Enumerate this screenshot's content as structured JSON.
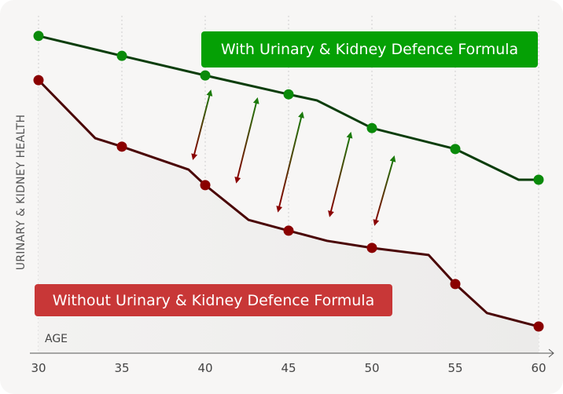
{
  "chart_data": {
    "type": "line",
    "xlabel": "AGE",
    "ylabel": "URINARY & KIDNEY HEALTH",
    "x_ticks": [
      30,
      35,
      40,
      45,
      50,
      55,
      60
    ],
    "xlim": [
      30,
      60
    ],
    "ylim": [
      0,
      100
    ],
    "grid": "vertical dotted",
    "series": [
      {
        "name": "With Urinary & Kidney Defence Formula",
        "color": "#0a8a0a",
        "line_color": "#0b3d0b",
        "points": [
          [
            30,
            94
          ],
          [
            35,
            88.1
          ],
          [
            40,
            82.3
          ],
          [
            45,
            76.7
          ],
          [
            46.7,
            74.9
          ],
          [
            50,
            66.7
          ],
          [
            55,
            60.5
          ],
          [
            58.8,
            51.4
          ],
          [
            60,
            51.4
          ]
        ],
        "markers_at": [
          30,
          35,
          40,
          45,
          50,
          55,
          60
        ]
      },
      {
        "name": "Without Urinary & Kidney Defence Formula",
        "color": "#8a0000",
        "line_color": "#4a0505",
        "points": [
          [
            30,
            80.9
          ],
          [
            33.4,
            63.7
          ],
          [
            35,
            61.2
          ],
          [
            39,
            54.4
          ],
          [
            40,
            49.8
          ],
          [
            42.6,
            39.5
          ],
          [
            45,
            36.3
          ],
          [
            47.3,
            33.3
          ],
          [
            50,
            31.2
          ],
          [
            53.4,
            29.1
          ],
          [
            55,
            20.5
          ],
          [
            56.9,
            11.9
          ],
          [
            60,
            7.9
          ]
        ],
        "markers_at": [
          30,
          35,
          40,
          45,
          50,
          55,
          60
        ]
      }
    ],
    "arrows": [
      {
        "from": [
          39.3,
          58.1
        ],
        "to": [
          40.3,
          77.2
        ]
      },
      {
        "from": [
          41.9,
          51.2
        ],
        "to": [
          43.1,
          74.9
        ]
      },
      {
        "from": [
          44.4,
          42.6
        ],
        "to": [
          45.8,
          70.7
        ]
      },
      {
        "from": [
          47.5,
          41.2
        ],
        "to": [
          48.7,
          64.7
        ]
      },
      {
        "from": [
          50.2,
          38.6
        ],
        "to": [
          51.3,
          57.7
        ]
      }
    ]
  }
}
